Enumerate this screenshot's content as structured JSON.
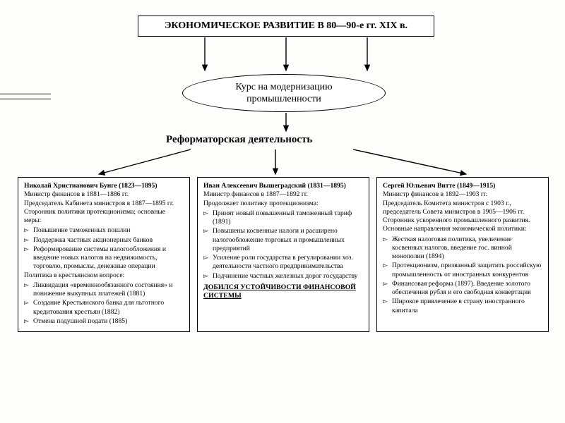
{
  "background_color": "#fdfdfc",
  "border_color": "#000000",
  "arrow_color": "#000000",
  "accent_color": "#bfbfbf",
  "title": "ЭКОНОМИЧЕСКОЕ РАЗВИТИЕ В 80—90-е гг. XIX в.",
  "oval_line1": "Курс на модернизацию",
  "oval_line2": "промышленности",
  "section_title": "Реформаторская деятельность",
  "arrows": {
    "top_to_oval": [
      [
        290,
        53,
        290,
        100
      ],
      [
        405,
        53,
        405,
        100
      ],
      [
        520,
        53,
        520,
        100
      ]
    ],
    "oval_to_title": [
      [
        405,
        160,
        405,
        186
      ]
    ],
    "title_to_cols": [
      [
        270,
        212,
        140,
        247
      ],
      [
        390,
        212,
        390,
        247
      ],
      [
        500,
        212,
        660,
        247
      ]
    ]
  },
  "cols": [
    {
      "name": "Николай Христианович Бунге (1823—1895)",
      "lines": [
        "Министр финансов в 1881—1886 гг.",
        "Председатель Кабинета министров в 1887—1895 гг.",
        "Сторонник политики протекционизма; основ­ные меры:"
      ],
      "bullets": [
        "Повышение таможенных пошлин",
        "Поддержка частных акционерных банков",
        "Реформирование системы налогообложения и введение новых налогов на недвижи­мость, торговлю, промыслы, денежные опе­рации"
      ],
      "lines2": [
        "Политика в крестьянском вопросе:"
      ],
      "bullets2": [
        "Ликвидация «временнообязанного состоя­ния» и понижение выкупных платежей (1881)",
        "Создание Крестьянского банка для льгот­ного кредитования крестьян (1882)",
        "Отмена подушной подати (1885)"
      ]
    },
    {
      "name": "Иван Алексеевич Вышеградский (1831—1895)",
      "lines": [
        "Министр финансов в 1887—1892 гг.",
        "Продолжает политику протекционизма:"
      ],
      "bullets": [
        "Принят новый повышенный таможенный тариф (1891)",
        "Повышены косвенные налоги и расширено налогообложение торговых и промышленных предприятий",
        "Усиление роли государства в регулировании хоз. деятельности частного предпринимательства",
        "Подчинение частных железных дорог государству"
      ],
      "achieved": "ДОБИЛСЯ УСТОЙЧИВОСТИ ФИНАНСОВОЙ СИСТЕМЫ"
    },
    {
      "name": "Сергей Юльевич Витте (1849—1915)",
      "lines": [
        "Министр финансов в 1892—1903 гг.",
        "Председатель Комитета министров с 1903 г., председатель Совета министров в 1905—1906 гг.",
        "Сторонник ускоренного промышленного разви­тия.",
        "Основные направления экономической политики:"
      ],
      "bullets": [
        "Жесткая налоговая политика, увеличение косвенных налогов, введение гос. винной монополии (1894)",
        "Протекционизм, призванный защитить российскую промышленность от иностранных конкурентов",
        "Финансовая реформа (1897). Введение золотого обеспечения рубля и его свободная конвертация",
        "Широкое привлечение в страну иностранного капитала"
      ]
    }
  ]
}
